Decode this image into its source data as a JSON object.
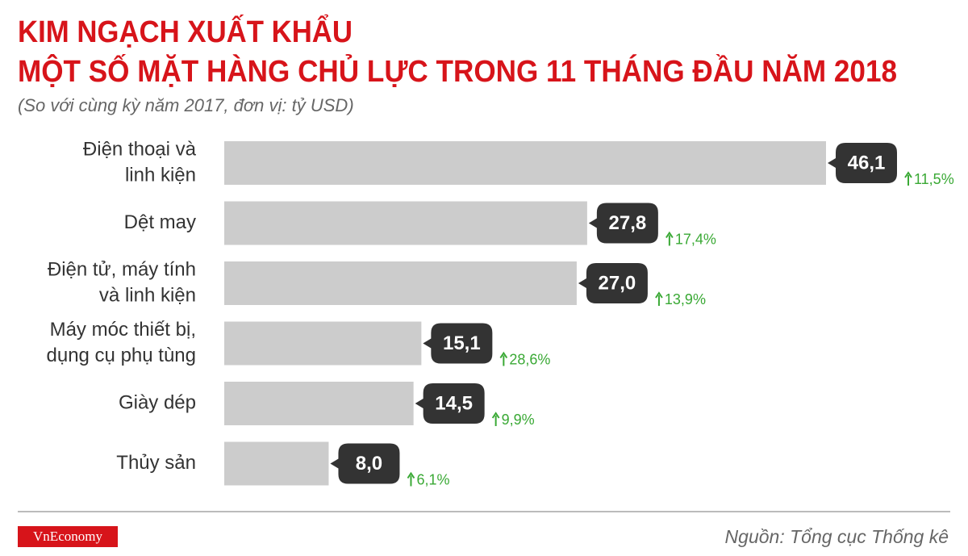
{
  "title_lines": [
    "KIM NGẠCH XUẤT KHẨU",
    "MỘT SỐ MẶT HÀNG CHỦ LỰC TRONG 11 THÁNG ĐẦU NĂM 2018"
  ],
  "subtitle": "(So với cùng kỳ năm 2017, đơn vị: tỷ USD)",
  "chart_data": {
    "type": "bar",
    "orientation": "horizontal",
    "categories": [
      [
        "Điện thoại và",
        "linh kiện"
      ],
      [
        "Dệt may"
      ],
      [
        "Điện tử, máy tính",
        "và linh kiện"
      ],
      [
        "Máy móc thiết bị,",
        "dụng cụ phụ tùng"
      ],
      [
        "Giày dép"
      ],
      [
        "Thủy sản"
      ]
    ],
    "values": [
      46.1,
      27.8,
      27.0,
      15.1,
      14.5,
      8.0
    ],
    "value_labels": [
      "46,1",
      "27,8",
      "27,0",
      "15,1",
      "14,5",
      "8,0"
    ],
    "growth_values": [
      11.5,
      17.4,
      13.9,
      28.6,
      9.9,
      6.1
    ],
    "growth_labels": [
      "11,5%",
      "17,4%",
      "13,9%",
      "28,6%",
      "9,9%",
      "6,1%"
    ],
    "color": "#cccccc",
    "label_color": "#333333",
    "growth_color": "#3aa935"
  },
  "footer": {
    "logo": "VnEconomy",
    "source": "Nguồn: Tổng cục Thống kê"
  }
}
